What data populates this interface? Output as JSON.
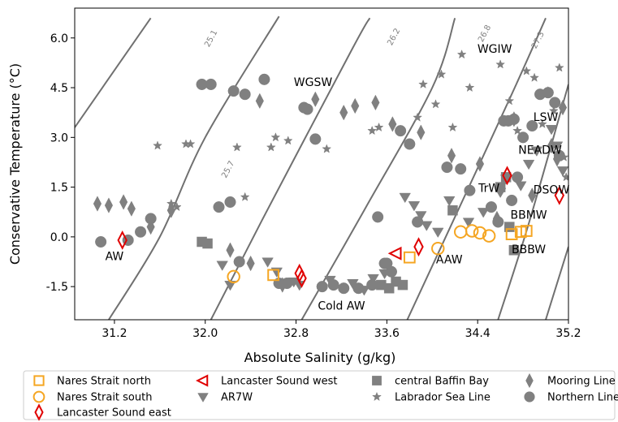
{
  "chart_data": {
    "type": "scatter",
    "title": "",
    "xlabel": "Absolute Salinity (g/kg)",
    "ylabel": "Conservative Temperature (°C)",
    "xlim": [
      30.85,
      35.2
    ],
    "ylim": [
      -2.5,
      6.9
    ],
    "xticks": [
      "31.2",
      "32.0",
      "32.8",
      "33.6",
      "34.4",
      "35.2"
    ],
    "yticks": [
      "-1.5",
      "0.0",
      "1.5",
      "3.0",
      "4.5",
      "6.0"
    ],
    "grid": false,
    "legend_position": "bottom",
    "isopycnal_color": "#707070",
    "isopycnals": [
      {
        "label": "",
        "points": [
          [
            30.85,
            3.3
          ],
          [
            31.52,
            6.6
          ]
        ]
      },
      {
        "label": "25.1",
        "points": [
          [
            31.15,
            -2.5
          ],
          [
            31.6,
            0.0
          ],
          [
            32.0,
            3.0
          ],
          [
            32.65,
            6.65
          ]
        ]
      },
      {
        "label": "25.7",
        "points": [
          [
            32.05,
            -2.5
          ],
          [
            32.5,
            0.5
          ],
          [
            33.3,
            5.7
          ],
          [
            33.45,
            6.6
          ]
        ]
      },
      {
        "label": "26.2",
        "points": [
          [
            32.85,
            -2.5
          ],
          [
            33.4,
            0.8
          ],
          [
            34.0,
            4.5
          ],
          [
            34.2,
            6.6
          ]
        ]
      },
      {
        "label": "26.8",
        "points": [
          [
            33.78,
            -2.5
          ],
          [
            34.2,
            0.6
          ],
          [
            34.7,
            4.3
          ],
          [
            35.0,
            6.6
          ]
        ]
      },
      {
        "label": "27.3",
        "points": [
          [
            34.58,
            -2.5
          ],
          [
            34.85,
            0.4
          ],
          [
            35.2,
            4.6
          ]
        ]
      },
      {
        "label": "",
        "points": [
          [
            35.0,
            -2.5
          ],
          [
            35.2,
            -0.3
          ]
        ]
      }
    ],
    "isopycnal_label_points": [
      {
        "label": "25.1",
        "x": 32.07,
        "y": 5.95
      },
      {
        "label": "25.7",
        "x": 32.22,
        "y": 2.0
      },
      {
        "label": "26.2",
        "x": 33.68,
        "y": 6.0
      },
      {
        "label": "26.8",
        "x": 34.48,
        "y": 6.1
      },
      {
        "label": "27.3",
        "x": 34.95,
        "y": 5.9
      }
    ],
    "water_mass_labels": [
      {
        "text": "AW",
        "x": 31.2,
        "y": -0.6
      },
      {
        "text": "WGSW",
        "x": 32.95,
        "y": 4.65
      },
      {
        "text": "Cold AW",
        "x": 33.2,
        "y": -2.1
      },
      {
        "text": "AAW",
        "x": 34.15,
        "y": -0.7
      },
      {
        "text": "WGIW",
        "x": 34.55,
        "y": 5.65
      },
      {
        "text": "LSW",
        "x": 35.0,
        "y": 3.6
      },
      {
        "text": "NEADW",
        "x": 34.95,
        "y": 2.6
      },
      {
        "text": "TrW",
        "x": 34.5,
        "y": 1.45
      },
      {
        "text": "DSOW",
        "x": 35.05,
        "y": 1.4
      },
      {
        "text": "BBMW",
        "x": 34.85,
        "y": 0.65
      },
      {
        "text": "BBBW",
        "x": 34.85,
        "y": -0.4
      }
    ],
    "series": [
      {
        "name": "Nares Strait north",
        "marker": "square-open",
        "color": "#f5a623",
        "x": [
          32.6,
          33.8,
          34.7,
          34.78,
          34.83
        ],
        "y": [
          -1.15,
          -0.62,
          0.08,
          0.15,
          0.18
        ]
      },
      {
        "name": "Nares Strait south",
        "marker": "circle-open",
        "color": "#f5a623",
        "x": [
          32.25,
          34.05,
          34.25,
          34.35,
          34.42,
          34.5
        ],
        "y": [
          -1.2,
          -0.35,
          0.15,
          0.18,
          0.12,
          0.03
        ]
      },
      {
        "name": "Lancaster Sound east",
        "marker": "diamond-open",
        "color": "#e00000",
        "x": [
          31.27,
          32.83,
          32.85,
          33.88,
          34.66,
          35.12
        ],
        "y": [
          -0.1,
          -1.1,
          -1.25,
          -0.3,
          1.85,
          1.25
        ]
      },
      {
        "name": "Lancaster Sound west",
        "marker": "triangle-left-open",
        "color": "#e00000",
        "x": [
          33.68
        ],
        "y": [
          -0.5
        ]
      },
      {
        "name": "AR7W",
        "marker": "triangle-down",
        "color": "#808080",
        "x": [
          32.15,
          32.22,
          32.55,
          32.63,
          32.78,
          32.83,
          33.1,
          33.3,
          33.4,
          33.48,
          33.58,
          33.76,
          33.84,
          33.9,
          33.95,
          34.05,
          34.15,
          34.32,
          34.45,
          34.6,
          34.65,
          34.78,
          34.85,
          34.92,
          35.05,
          35.1,
          35.15
        ],
        "y": [
          -0.85,
          -1.45,
          -0.75,
          -1.05,
          -1.35,
          -1.45,
          -1.3,
          -1.4,
          -1.6,
          -1.25,
          -1.1,
          1.2,
          0.95,
          0.65,
          0.35,
          0.15,
          1.1,
          0.45,
          0.75,
          1.35,
          1.75,
          1.55,
          2.2,
          2.6,
          3.25,
          2.75,
          2.0
        ]
      },
      {
        "name": "central Baffin Bay",
        "marker": "square",
        "color": "#808080",
        "x": [
          31.97,
          32.02,
          33.55,
          33.62,
          33.68,
          33.74,
          34.18,
          34.6,
          34.65,
          34.68,
          34.72
        ],
        "y": [
          -0.15,
          -0.2,
          -1.45,
          -1.55,
          -1.35,
          -1.45,
          0.8,
          1.5,
          1.8,
          0.3,
          -0.4
        ]
      },
      {
        "name": "Labrador Sea Line",
        "marker": "star",
        "color": "#808080",
        "x": [
          31.58,
          31.7,
          31.75,
          31.83,
          31.87,
          32.28,
          32.35,
          32.58,
          32.62,
          32.73,
          33.07,
          33.47,
          33.53,
          33.72,
          33.87,
          33.92,
          34.03,
          34.08,
          34.18,
          34.26,
          34.33,
          34.6,
          34.68,
          34.75,
          34.83,
          34.9,
          34.97,
          35.02,
          35.07,
          35.12,
          35.16,
          35.18
        ],
        "y": [
          2.75,
          1.0,
          0.9,
          2.8,
          2.8,
          2.7,
          1.2,
          2.7,
          3.0,
          2.9,
          2.65,
          3.2,
          3.3,
          3.2,
          3.6,
          4.6,
          4.0,
          4.9,
          3.3,
          5.5,
          4.5,
          5.2,
          4.1,
          3.2,
          5.0,
          4.8,
          3.4,
          4.4,
          3.8,
          5.1,
          2.4,
          1.8
        ]
      },
      {
        "name": "Mooring Line",
        "marker": "diamond",
        "color": "#808080",
        "x": [
          31.05,
          31.15,
          31.28,
          31.35,
          31.52,
          31.7,
          32.22,
          32.4,
          32.48,
          32.68,
          32.97,
          33.22,
          33.32,
          33.5,
          33.65,
          33.9,
          34.17,
          34.42,
          34.57,
          34.72,
          34.88,
          35.05,
          35.1,
          35.15
        ],
        "y": [
          1.0,
          0.95,
          1.05,
          0.85,
          0.3,
          0.8,
          -0.4,
          -0.8,
          4.1,
          -1.45,
          4.15,
          3.75,
          3.95,
          4.05,
          3.4,
          3.15,
          2.45,
          2.2,
          0.55,
          3.55,
          1.25,
          2.75,
          2.35,
          3.9
        ]
      },
      {
        "name": "Northern Line",
        "marker": "circle",
        "color": "#808080",
        "x": [
          31.08,
          31.32,
          31.43,
          31.52,
          31.97,
          32.05,
          32.12,
          32.22,
          32.25,
          32.3,
          32.35,
          32.52,
          32.65,
          32.72,
          32.87,
          32.9,
          32.97,
          33.03,
          33.13,
          33.22,
          33.35,
          33.47,
          33.52,
          33.58,
          33.6,
          33.64,
          33.72,
          33.8,
          33.87,
          34.13,
          34.25,
          34.33,
          34.52,
          34.58,
          34.63,
          34.67,
          34.7,
          34.72,
          34.75,
          34.8,
          34.88,
          34.95,
          35.02,
          35.08,
          35.12
        ],
        "y": [
          -0.15,
          -0.1,
          0.15,
          0.55,
          4.6,
          4.6,
          0.9,
          1.05,
          4.4,
          -0.75,
          4.3,
          4.75,
          -1.4,
          -1.4,
          3.9,
          3.85,
          2.95,
          -1.5,
          -1.45,
          -1.55,
          -1.55,
          -1.45,
          0.6,
          -0.8,
          -0.8,
          -1.05,
          3.2,
          2.8,
          0.45,
          2.1,
          2.05,
          1.4,
          0.9,
          0.45,
          3.5,
          3.5,
          1.1,
          3.55,
          1.8,
          3.0,
          3.35,
          4.3,
          4.35,
          4.05,
          2.45
        ]
      }
    ]
  }
}
